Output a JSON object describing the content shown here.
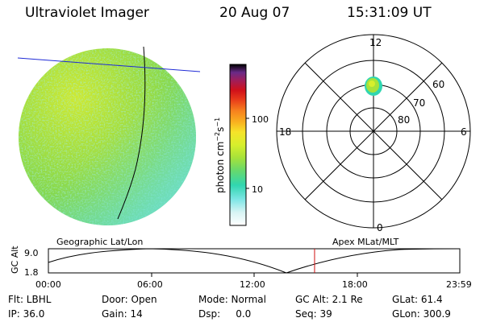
{
  "header": {
    "instrument": "Ultraviolet Imager",
    "date": "20 Aug 07",
    "time": "15:31:09 UT"
  },
  "colorbar": {
    "label_html": "photon cm<tspan dy='-5' font-size='8'>−2</tspan><tspan dy='5'>s</tspan><tspan dy='-5' font-size='8'>−1</tspan>",
    "tick_100": "100",
    "tick_10": "10",
    "colors": [
      "#000000",
      "#3b1a57",
      "#6a2a88",
      "#a01e5a",
      "#d0101a",
      "#e83c1a",
      "#f7821e",
      "#f9b21f",
      "#f6e329",
      "#d7ef2c",
      "#a6e23a",
      "#66d96d",
      "#30d6b0",
      "#7fe6e6",
      "#d8f4f4",
      "#ffffff"
    ]
  },
  "polar": {
    "mlt_top": "12",
    "mlt_bottom": "0",
    "mlt_left": "18",
    "mlt_right": "6",
    "lat_60": "60",
    "lat_70": "70",
    "lat_80": "80"
  },
  "orbit": {
    "left_title": "Geographic Lat/Lon",
    "right_title": "Apex MLat/MLT",
    "ylabel": "GC Alt",
    "y_top": "9.0",
    "y_bottom": "1.8",
    "x_ticks": [
      "00:00",
      "06:00",
      "12:00",
      "18:00",
      "23:59"
    ],
    "current_fraction": 0.647
  },
  "info": {
    "flt": "Flt: LBHL",
    "door": "Door: Open",
    "mode": "Mode: Normal",
    "gcalt": "GC Alt: 2.1 Re",
    "glat": "GLat: 61.4",
    "ip": "IP: 36.0",
    "gain": "Gain: 14",
    "dsp": "Dsp:     0.0",
    "seq": "Seq: 39",
    "glon": "GLon: 300.9"
  },
  "image_colors": {
    "disk_base": "#8ad94a",
    "disk_bright": "#c8e832",
    "disk_cyan": "#6fe0c8",
    "terminator": "#000000",
    "geo_line": "#1f2bd6",
    "orbit_marker": "#d01010",
    "oval_spot": "#c8e832"
  }
}
